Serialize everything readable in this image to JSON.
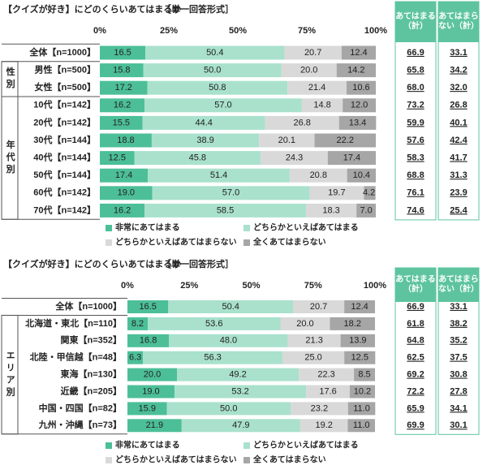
{
  "chart_data": [
    {
      "type": "stacked-bar",
      "title": "【クイズが好き】にどのくらいあてはまるか",
      "subtitle": "［単一回答形式］",
      "xlim": [
        0,
        100
      ],
      "xticks": [
        {
          "value": 0,
          "label": "0%"
        },
        {
          "value": 25,
          "label": "25%"
        },
        {
          "value": 50,
          "label": "50%"
        },
        {
          "value": 75,
          "label": "75%"
        },
        {
          "value": 100,
          "label": "100%"
        }
      ],
      "groups": [
        {
          "label": null,
          "categories": [
            "全体【n=1000】"
          ]
        },
        {
          "label": "性別",
          "categories": [
            "男性【n=500】",
            "女性【n=500】"
          ]
        },
        {
          "label": "年代別",
          "categories": [
            "10代【n=142】",
            "20代【n=142】",
            "30代【n=144】",
            "40代【n=144】",
            "50代【n=144】",
            "60代【n=142】",
            "70代【n=142】"
          ]
        }
      ],
      "series": [
        {
          "name": "非常にあてはまる",
          "color": "#4cbf98",
          "values": [
            16.5,
            15.8,
            17.2,
            16.2,
            15.5,
            18.8,
            12.5,
            17.4,
            19.0,
            16.2
          ],
          "value_labels": [
            "16.5",
            "15.8",
            "17.2",
            "16.2",
            "15.5",
            "18.8",
            "12.5",
            "17.4",
            "19.0",
            "16.2"
          ]
        },
        {
          "name": "どちらかといえばあてはまる",
          "color": "#a9e1cd",
          "values": [
            50.4,
            50.0,
            50.8,
            57.0,
            44.4,
            38.9,
            45.8,
            51.4,
            57.0,
            58.5
          ],
          "value_labels": [
            "50.4",
            "50.0",
            "50.8",
            "57.0",
            "44.4",
            "38.9",
            "45.8",
            "51.4",
            "57.0",
            "58.5"
          ]
        },
        {
          "name": "どちらかといえばあてはまらない",
          "color": "#d9d9d9",
          "values": [
            20.7,
            20.0,
            21.4,
            14.8,
            26.8,
            20.1,
            24.3,
            20.8,
            19.7,
            18.3
          ],
          "value_labels": [
            "20.7",
            "20.0",
            "21.4",
            "14.8",
            "26.8",
            "20.1",
            "24.3",
            "20.8",
            "19.7",
            "18.3"
          ]
        },
        {
          "name": "全くあてはまらない",
          "color": "#a6a6a6",
          "values": [
            12.4,
            14.2,
            10.6,
            12.0,
            13.4,
            22.2,
            17.4,
            10.4,
            4.2,
            7.0
          ],
          "value_labels": [
            "12.4",
            "14.2",
            "10.6",
            "12.0",
            "13.4",
            "22.2",
            "17.4",
            "10.4",
            "4.2",
            "7.0"
          ]
        }
      ],
      "totals": [
        {
          "name": "あてはまる（計）",
          "values": [
            66.9,
            65.8,
            68.0,
            73.2,
            59.9,
            57.6,
            58.3,
            68.8,
            76.1,
            74.6
          ],
          "value_labels": [
            "66.9",
            "65.8",
            "68.0",
            "73.2",
            "59.9",
            "57.6",
            "58.3",
            "68.8",
            "76.1",
            "74.6"
          ]
        },
        {
          "name": "あてはまらない（計）",
          "values": [
            33.1,
            34.2,
            32.0,
            26.8,
            40.1,
            42.4,
            41.7,
            31.3,
            23.9,
            25.4
          ],
          "value_labels": [
            "33.1",
            "34.2",
            "32.0",
            "26.8",
            "40.1",
            "42.4",
            "41.7",
            "31.3",
            "23.9",
            "25.4"
          ]
        }
      ],
      "header_color": "#5ec4a0"
    },
    {
      "type": "stacked-bar",
      "title": "【クイズが好き】にどのくらいあてはまるか",
      "subtitle": "［単一回答形式］",
      "xlim": [
        0,
        100
      ],
      "xticks": [
        {
          "value": 0,
          "label": "0%"
        },
        {
          "value": 25,
          "label": "25%"
        },
        {
          "value": 50,
          "label": "50%"
        },
        {
          "value": 75,
          "label": "75%"
        },
        {
          "value": 100,
          "label": "100%"
        }
      ],
      "groups": [
        {
          "label": null,
          "categories": [
            "全体【n=1000】"
          ]
        },
        {
          "label": "エリア別",
          "categories": [
            "北海道・東北【n=110】",
            "関東【n=352】",
            "北陸・甲信越【n=48】",
            "東海【n=130】",
            "近畿【n=205】",
            "中国・四国【n=82】",
            "九州・沖縄【n=73】"
          ]
        }
      ],
      "series": [
        {
          "name": "非常にあてはまる",
          "color": "#4cbf98",
          "values": [
            16.5,
            8.2,
            16.8,
            6.3,
            20.0,
            19.0,
            15.9,
            21.9
          ],
          "value_labels": [
            "16.5",
            "8.2",
            "16.8",
            "6.3",
            "20.0",
            "19.0",
            "15.9",
            "21.9"
          ]
        },
        {
          "name": "どちらかといえばあてはまる",
          "color": "#a9e1cd",
          "values": [
            50.4,
            53.6,
            48.0,
            56.3,
            49.2,
            53.2,
            50.0,
            47.9
          ],
          "value_labels": [
            "50.4",
            "53.6",
            "48.0",
            "56.3",
            "49.2",
            "53.2",
            "50.0",
            "47.9"
          ]
        },
        {
          "name": "どちらかといえばあてはまらない",
          "color": "#d9d9d9",
          "values": [
            20.7,
            20.0,
            21.3,
            25.0,
            22.3,
            17.6,
            23.2,
            19.2
          ],
          "value_labels": [
            "20.7",
            "20.0",
            "21.3",
            "25.0",
            "22.3",
            "17.6",
            "23.2",
            "19.2"
          ]
        },
        {
          "name": "全くあてはまらない",
          "color": "#a6a6a6",
          "values": [
            12.4,
            18.2,
            13.9,
            12.5,
            8.5,
            10.2,
            11.0,
            11.0
          ],
          "value_labels": [
            "12.4",
            "18.2",
            "13.9",
            "12.5",
            "8.5",
            "10.2",
            "11.0",
            "11.0"
          ]
        }
      ],
      "totals": [
        {
          "name": "あてはまる（計）",
          "values": [
            66.9,
            61.8,
            64.8,
            62.5,
            69.2,
            72.2,
            65.9,
            69.9
          ],
          "value_labels": [
            "66.9",
            "61.8",
            "64.8",
            "62.5",
            "69.2",
            "72.2",
            "65.9",
            "69.9"
          ]
        },
        {
          "name": "あてはまらない（計）",
          "values": [
            33.1,
            38.2,
            35.2,
            37.5,
            30.8,
            27.8,
            34.1,
            30.1
          ],
          "value_labels": [
            "33.1",
            "38.2",
            "35.2",
            "37.5",
            "30.8",
            "27.8",
            "34.1",
            "30.1"
          ]
        }
      ],
      "header_color": "#5ec4a0"
    }
  ]
}
